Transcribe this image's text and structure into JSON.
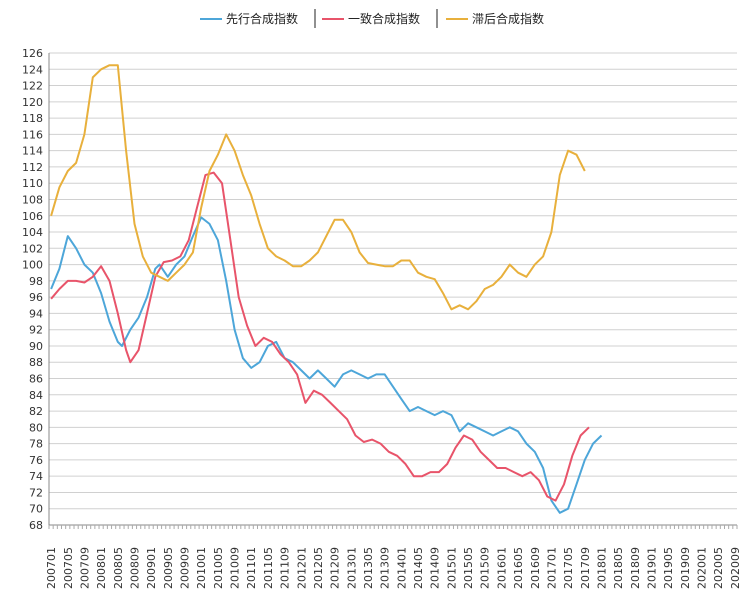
{
  "chart_data": {
    "type": "line",
    "title": "",
    "xlabel": "",
    "ylabel": "",
    "ylim": [
      68,
      126
    ],
    "yticks": [
      68,
      70,
      72,
      74,
      76,
      78,
      80,
      82,
      84,
      86,
      88,
      90,
      92,
      94,
      96,
      98,
      100,
      102,
      104,
      106,
      108,
      110,
      112,
      114,
      116,
      118,
      120,
      122,
      124,
      126
    ],
    "grid": true,
    "legend": "top-center",
    "x_start": "200701",
    "x_end": "202009",
    "x_tick_labels": [
      "200701",
      "200705",
      "200709",
      "200801",
      "200805",
      "200809",
      "200901",
      "200905",
      "200909",
      "201001",
      "201005",
      "201009",
      "201101",
      "201105",
      "201109",
      "201201",
      "201205",
      "201209",
      "201301",
      "201305",
      "201309",
      "201401",
      "201405",
      "201409",
      "201501",
      "201505",
      "201509",
      "201601",
      "201605",
      "201609",
      "201701",
      "201705",
      "201709",
      "201801",
      "201805",
      "201809",
      "201901",
      "201905",
      "201909",
      "202001",
      "202005",
      "202009"
    ],
    "series": [
      {
        "name": "先行合成指数",
        "color": "#4da6d9",
        "points": [
          [
            "200701",
            97.0
          ],
          [
            "200703",
            99.5
          ],
          [
            "200705",
            103.5
          ],
          [
            "200707",
            102.0
          ],
          [
            "200709",
            100.0
          ],
          [
            "200711",
            99.0
          ],
          [
            "200801",
            96.5
          ],
          [
            "200803",
            93.0
          ],
          [
            "200805",
            90.5
          ],
          [
            "200806",
            90.0
          ],
          [
            "200808",
            92.0
          ],
          [
            "200810",
            93.5
          ],
          [
            "200812",
            96.0
          ],
          [
            "200902",
            99.5
          ],
          [
            "200903",
            100.0
          ],
          [
            "200905",
            98.5
          ],
          [
            "200907",
            100.0
          ],
          [
            "200909",
            101.0
          ],
          [
            "200911",
            103.5
          ],
          [
            "201001",
            105.8
          ],
          [
            "201003",
            105.0
          ],
          [
            "201005",
            103.0
          ],
          [
            "201007",
            98.0
          ],
          [
            "201009",
            92.0
          ],
          [
            "201011",
            88.5
          ],
          [
            "201101",
            87.3
          ],
          [
            "201103",
            88.0
          ],
          [
            "201105",
            90.0
          ],
          [
            "201107",
            90.5
          ],
          [
            "201109",
            88.5
          ],
          [
            "201111",
            88.0
          ],
          [
            "201201",
            87.0
          ],
          [
            "201203",
            86.0
          ],
          [
            "201205",
            87.0
          ],
          [
            "201207",
            86.0
          ],
          [
            "201209",
            85.0
          ],
          [
            "201211",
            86.5
          ],
          [
            "201301",
            87.0
          ],
          [
            "201303",
            86.5
          ],
          [
            "201305",
            86.0
          ],
          [
            "201307",
            86.5
          ],
          [
            "201309",
            86.5
          ],
          [
            "201311",
            85.0
          ],
          [
            "201401",
            83.5
          ],
          [
            "201403",
            82.0
          ],
          [
            "201405",
            82.5
          ],
          [
            "201407",
            82.0
          ],
          [
            "201409",
            81.5
          ],
          [
            "201411",
            82.0
          ],
          [
            "201501",
            81.5
          ],
          [
            "201503",
            79.5
          ],
          [
            "201505",
            80.5
          ],
          [
            "201507",
            80.0
          ],
          [
            "201509",
            79.5
          ],
          [
            "201511",
            79.0
          ],
          [
            "201601",
            79.5
          ],
          [
            "201603",
            80.0
          ],
          [
            "201605",
            79.5
          ],
          [
            "201607",
            78.0
          ],
          [
            "201609",
            77.0
          ],
          [
            "201611",
            75.0
          ],
          [
            "201701",
            71.0
          ],
          [
            "201703",
            69.5
          ],
          [
            "201705",
            70.0
          ],
          [
            "201707",
            73.0
          ],
          [
            "201709",
            76.0
          ],
          [
            "201711",
            78.0
          ],
          [
            "201801",
            79.0
          ]
        ]
      },
      {
        "name": "一致合成指数",
        "color": "#e8546a",
        "points": [
          [
            "200701",
            95.8
          ],
          [
            "200703",
            97.0
          ],
          [
            "200705",
            98.0
          ],
          [
            "200707",
            98.0
          ],
          [
            "200709",
            97.8
          ],
          [
            "200711",
            98.5
          ],
          [
            "200801",
            99.8
          ],
          [
            "200803",
            98.0
          ],
          [
            "200805",
            94.0
          ],
          [
            "200807",
            89.5
          ],
          [
            "200808",
            88.0
          ],
          [
            "200810",
            89.5
          ],
          [
            "200812",
            94.0
          ],
          [
            "200902",
            98.5
          ],
          [
            "200904",
            100.3
          ],
          [
            "200906",
            100.5
          ],
          [
            "200908",
            101.0
          ],
          [
            "200910",
            103.0
          ],
          [
            "200912",
            107.0
          ],
          [
            "201002",
            111.0
          ],
          [
            "201004",
            111.3
          ],
          [
            "201006",
            110.0
          ],
          [
            "201008",
            103.0
          ],
          [
            "201010",
            96.0
          ],
          [
            "201012",
            92.5
          ],
          [
            "201102",
            90.0
          ],
          [
            "201104",
            91.0
          ],
          [
            "201106",
            90.5
          ],
          [
            "201108",
            89.0
          ],
          [
            "201110",
            88.0
          ],
          [
            "201112",
            86.5
          ],
          [
            "201202",
            83.0
          ],
          [
            "201204",
            84.5
          ],
          [
            "201206",
            84.0
          ],
          [
            "201208",
            83.0
          ],
          [
            "201210",
            82.0
          ],
          [
            "201212",
            81.0
          ],
          [
            "201302",
            79.0
          ],
          [
            "201304",
            78.2
          ],
          [
            "201306",
            78.5
          ],
          [
            "201308",
            78.0
          ],
          [
            "201310",
            77.0
          ],
          [
            "201312",
            76.5
          ],
          [
            "201402",
            75.5
          ],
          [
            "201404",
            74.0
          ],
          [
            "201406",
            74.0
          ],
          [
            "201408",
            74.5
          ],
          [
            "201410",
            74.5
          ],
          [
            "201412",
            75.5
          ],
          [
            "201502",
            77.5
          ],
          [
            "201504",
            79.0
          ],
          [
            "201506",
            78.5
          ],
          [
            "201508",
            77.0
          ],
          [
            "201510",
            76.0
          ],
          [
            "201512",
            75.0
          ],
          [
            "201602",
            75.0
          ],
          [
            "201604",
            74.5
          ],
          [
            "201606",
            74.0
          ],
          [
            "201608",
            74.5
          ],
          [
            "201610",
            73.5
          ],
          [
            "201612",
            71.5
          ],
          [
            "201702",
            71.0
          ],
          [
            "201704",
            73.0
          ],
          [
            "201706",
            76.5
          ],
          [
            "201708",
            79.0
          ],
          [
            "201710",
            80.0
          ]
        ]
      },
      {
        "name": "滞后合成指数",
        "color": "#e8b03c",
        "points": [
          [
            "200701",
            106.0
          ],
          [
            "200703",
            109.5
          ],
          [
            "200705",
            111.5
          ],
          [
            "200707",
            112.5
          ],
          [
            "200709",
            116.0
          ],
          [
            "200711",
            123.0
          ],
          [
            "200801",
            124.0
          ],
          [
            "200803",
            124.5
          ],
          [
            "200805",
            124.5
          ],
          [
            "200807",
            114.0
          ],
          [
            "200809",
            105.0
          ],
          [
            "200811",
            101.0
          ],
          [
            "200901",
            99.0
          ],
          [
            "200903",
            98.5
          ],
          [
            "200905",
            98.0
          ],
          [
            "200907",
            99.0
          ],
          [
            "200909",
            100.0
          ],
          [
            "200911",
            101.5
          ],
          [
            "201001",
            107.0
          ],
          [
            "201003",
            111.5
          ],
          [
            "201005",
            113.5
          ],
          [
            "201007",
            116.0
          ],
          [
            "201009",
            114.0
          ],
          [
            "201011",
            111.0
          ],
          [
            "201101",
            108.5
          ],
          [
            "201103",
            105.0
          ],
          [
            "201105",
            102.0
          ],
          [
            "201107",
            101.0
          ],
          [
            "201109",
            100.5
          ],
          [
            "201111",
            99.8
          ],
          [
            "201201",
            99.8
          ],
          [
            "201203",
            100.5
          ],
          [
            "201205",
            101.5
          ],
          [
            "201207",
            103.5
          ],
          [
            "201209",
            105.5
          ],
          [
            "201211",
            105.5
          ],
          [
            "201301",
            104.0
          ],
          [
            "201303",
            101.5
          ],
          [
            "201305",
            100.2
          ],
          [
            "201307",
            100.0
          ],
          [
            "201309",
            99.8
          ],
          [
            "201311",
            99.8
          ],
          [
            "201401",
            100.5
          ],
          [
            "201403",
            100.5
          ],
          [
            "201405",
            99.0
          ],
          [
            "201407",
            98.5
          ],
          [
            "201409",
            98.2
          ],
          [
            "201411",
            96.5
          ],
          [
            "201501",
            94.5
          ],
          [
            "201503",
            95.0
          ],
          [
            "201505",
            94.5
          ],
          [
            "201507",
            95.5
          ],
          [
            "201509",
            97.0
          ],
          [
            "201511",
            97.5
          ],
          [
            "201601",
            98.5
          ],
          [
            "201603",
            100.0
          ],
          [
            "201605",
            99.0
          ],
          [
            "201607",
            98.5
          ],
          [
            "201609",
            100.0
          ],
          [
            "201611",
            101.0
          ],
          [
            "201701",
            104.0
          ],
          [
            "201703",
            111.0
          ],
          [
            "201705",
            114.0
          ],
          [
            "201707",
            113.5
          ],
          [
            "201709",
            111.5
          ]
        ]
      }
    ]
  }
}
